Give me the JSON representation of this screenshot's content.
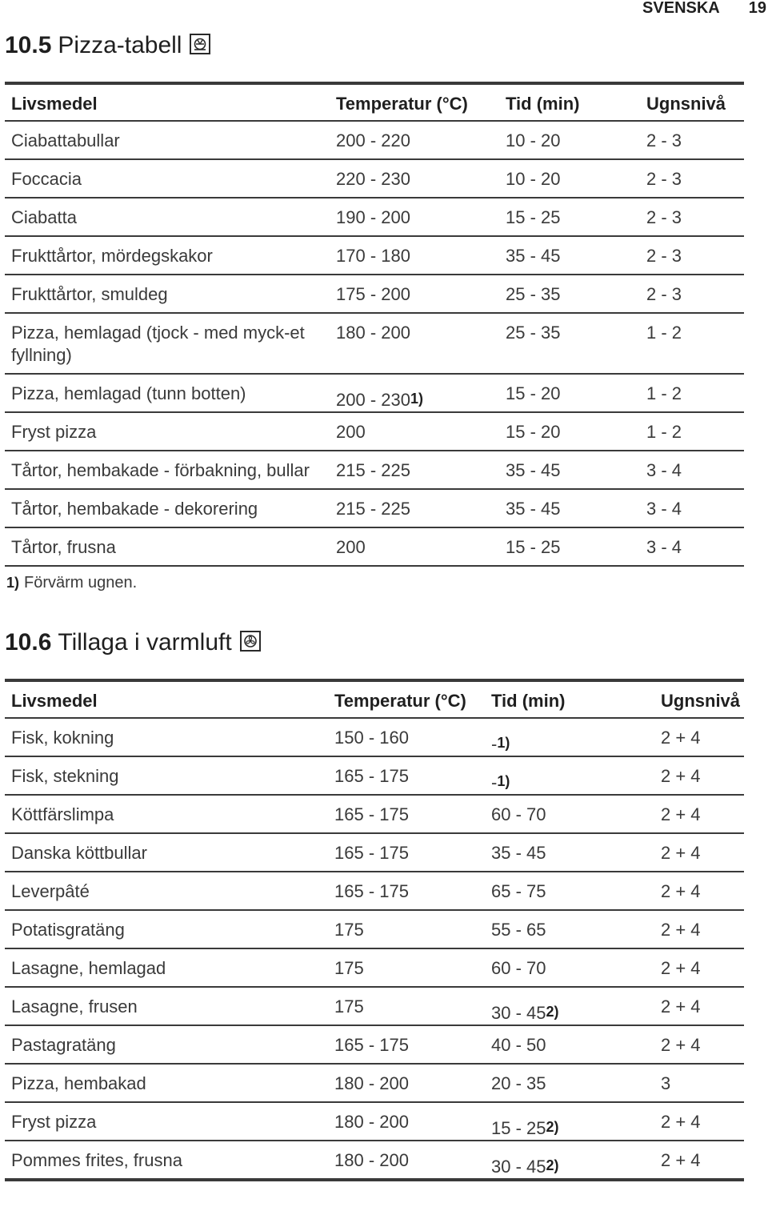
{
  "header": {
    "language": "SVENSKA",
    "page_number": "19"
  },
  "pizza_section": {
    "number": "10.5",
    "title": "Pizza-tabell",
    "icon": "pizza-setting-icon",
    "columns": [
      "Livsmedel",
      "Temperatur (°C)",
      "Tid (min)",
      "Ugnsnivå"
    ],
    "rows": [
      {
        "food": "Ciabattabullar",
        "temp": "200 - 220",
        "time": "10 - 20",
        "level": "2 - 3"
      },
      {
        "food": "Foccacia",
        "temp": "220 - 230",
        "time": "10 - 20",
        "level": "2 - 3"
      },
      {
        "food": "Ciabatta",
        "temp": "190 - 200",
        "time": "15 - 25",
        "level": "2 - 3"
      },
      {
        "food": "Frukttårtor, mördegskakor",
        "temp": "170 - 180",
        "time": "35 - 45",
        "level": "2 - 3"
      },
      {
        "food": "Frukttårtor, smuldeg",
        "temp": "175 - 200",
        "time": "25 - 35",
        "level": "2 - 3"
      },
      {
        "food": "Pizza, hemlagad (tjock - med myck-et fyllning)",
        "temp": "180 - 200",
        "time": "25 - 35",
        "level": "1 - 2"
      },
      {
        "food": "Pizza, hemlagad (tunn botten)",
        "temp": "200 - 230",
        "temp_ref": "1)",
        "time": "15 - 20",
        "level": "1 - 2"
      },
      {
        "food": "Fryst pizza",
        "temp": "200",
        "time": "15 - 20",
        "level": "1 - 2"
      },
      {
        "food": "Tårtor, hembakade - förbakning, bullar",
        "temp": "215 - 225",
        "time": "35 - 45",
        "level": "3 - 4"
      },
      {
        "food": "Tårtor, hembakade - dekorering",
        "temp": "215 - 225",
        "time": "35 - 45",
        "level": "3 - 4"
      },
      {
        "food": "Tårtor, frusna",
        "temp": "200",
        "time": "15 - 25",
        "level": "3 - 4"
      }
    ],
    "footnote_mark": "1)",
    "footnote_text": "Förvärm ugnen."
  },
  "convection_section": {
    "number": "10.6",
    "title": "Tillaga i varmluft",
    "icon": "fan-setting-icon",
    "columns": [
      "Livsmedel",
      "Temperatur (°C)",
      "Tid (min)",
      "Ugnsnivå"
    ],
    "rows": [
      {
        "food": "Fisk, kokning",
        "temp": "150 - 160",
        "time": "-",
        "time_ref": "1)",
        "level": "2 + 4"
      },
      {
        "food": "Fisk, stekning",
        "temp": "165 - 175",
        "time": "-",
        "time_ref": "1)",
        "level": "2 + 4"
      },
      {
        "food": "Köttfärslimpa",
        "temp": "165 - 175",
        "time": "60 - 70",
        "level": "2 + 4"
      },
      {
        "food": "Danska köttbullar",
        "temp": "165 - 175",
        "time": "35 - 45",
        "level": "2 + 4"
      },
      {
        "food": "Leverpâté",
        "temp": "165 - 175",
        "time": "65 - 75",
        "level": "2 + 4"
      },
      {
        "food": "Potatisgratäng",
        "temp": "175",
        "time": "55 - 65",
        "level": "2 + 4"
      },
      {
        "food": "Lasagne, hemlagad",
        "temp": "175",
        "time": "60 - 70",
        "level": "2 + 4"
      },
      {
        "food": "Lasagne, frusen",
        "temp": "175",
        "time": "30 - 45",
        "time_ref": "2)",
        "level": "2 + 4"
      },
      {
        "food": "Pastagratäng",
        "temp": "165 - 175",
        "time": "40 - 50",
        "level": "2 + 4"
      },
      {
        "food": "Pizza, hembakad",
        "temp": "180 - 200",
        "time": "20 - 35",
        "level": "3"
      },
      {
        "food": "Fryst pizza",
        "temp": "180 - 200",
        "time": "15 - 25",
        "time_ref": "2)",
        "level": "2 + 4"
      },
      {
        "food": "Pommes frites, frusna",
        "temp": "180 - 200",
        "time": "30 - 45",
        "time_ref": "2)",
        "level": "2 + 4"
      }
    ]
  }
}
